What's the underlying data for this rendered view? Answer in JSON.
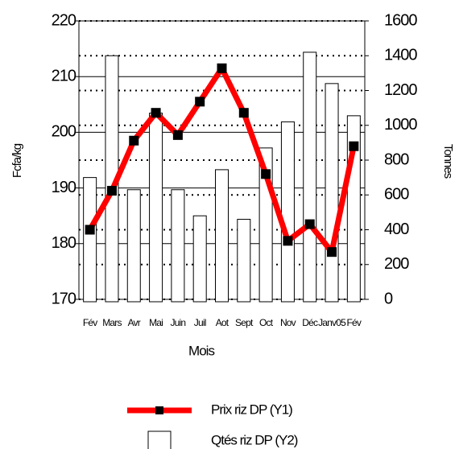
{
  "chart_data": {
    "type": "bar-line",
    "x_label": "Mois",
    "y_label": "Fcfa/kg",
    "y2_label": "Tonnes",
    "categories": [
      "Fév",
      "Mars",
      "Avr",
      "Mai",
      "Juin",
      "Juil",
      "Aot",
      "Sept",
      "Oct",
      "Nov",
      "Déc",
      "Janv05",
      "Fév"
    ],
    "series": [
      {
        "name": "Prix riz DP (Y1)",
        "type": "line",
        "color": "#ff0000",
        "marker_color": "#000000",
        "values": [
          182.5,
          189.5,
          198.5,
          203.5,
          199.5,
          205.5,
          211.5,
          203.5,
          192.5,
          180.5,
          183.5,
          178.5,
          197.5
        ]
      },
      {
        "name": "Qtés riz DP (Y2)",
        "type": "bar",
        "axis": "y2",
        "color": "#ffffff",
        "values": [
          700,
          1400,
          630,
          1070,
          630,
          480,
          745,
          460,
          870,
          1020,
          1420,
          1240,
          1055
        ]
      }
    ],
    "ylim": [
      170,
      220
    ],
    "yticks": [
      170,
      180,
      190,
      200,
      210,
      220
    ],
    "y2lim": [
      0,
      1600
    ],
    "y2ticks": [
      0,
      200,
      400,
      600,
      800,
      1000,
      1200,
      1400,
      1600
    ],
    "grid": true
  }
}
